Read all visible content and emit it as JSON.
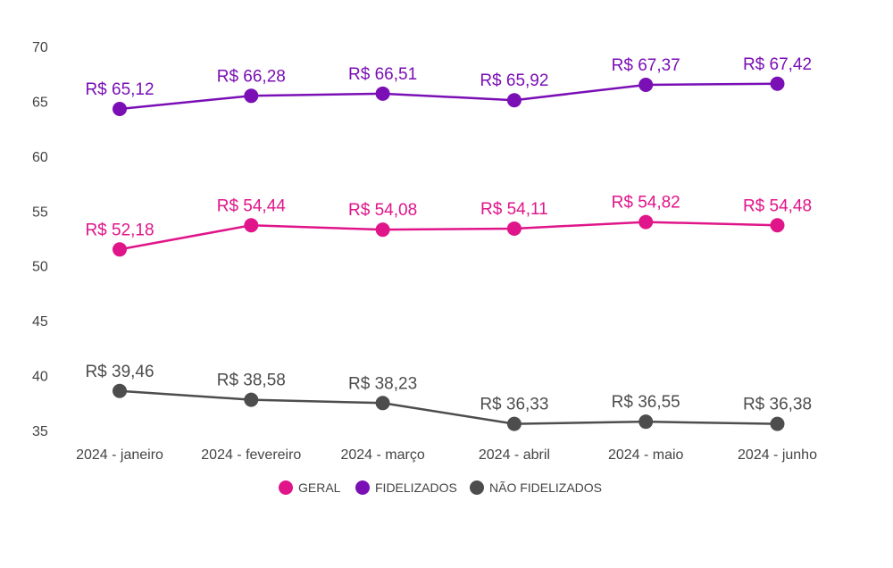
{
  "chart_data": {
    "type": "line",
    "title": "",
    "xlabel": "",
    "ylabel": "",
    "categories": [
      "2024 - janeiro",
      "2024 - fevereiro",
      "2024 - março",
      "2024 - abril",
      "2024 - maio",
      "2024 - junho"
    ],
    "y_ticks": [
      "70",
      "65",
      "60",
      "55",
      "50",
      "45",
      "40",
      "35"
    ],
    "ylim": [
      35,
      70
    ],
    "grid": false,
    "legend_position": "bottom",
    "series": [
      {
        "name": "GERAL",
        "color": "#e0158a",
        "values": [
          51.5,
          53.7,
          53.3,
          53.4,
          54.0,
          53.7
        ],
        "labels": [
          "R$ 52,18",
          "R$ 54,44",
          "R$ 54,08",
          "R$ 54,11",
          "R$ 54,82",
          "R$ 54,48"
        ]
      },
      {
        "name": "FIDELIZADOS",
        "color": "#7a0fb5",
        "values": [
          64.3,
          65.5,
          65.7,
          65.1,
          66.5,
          66.6
        ],
        "labels": [
          "R$ 65,12",
          "R$ 66,28",
          "R$ 66,51",
          "R$ 65,92",
          "R$ 67,37",
          "R$ 67,42"
        ]
      },
      {
        "name": "NÃO FIDELIZADOS",
        "color": "#4d4d4d",
        "values": [
          38.6,
          37.8,
          37.5,
          35.6,
          35.8,
          35.6
        ],
        "labels": [
          "R$ 39,46",
          "R$ 38,58",
          "R$ 38,23",
          "R$ 36,33",
          "R$ 36,55",
          "R$ 36,38"
        ]
      }
    ]
  }
}
